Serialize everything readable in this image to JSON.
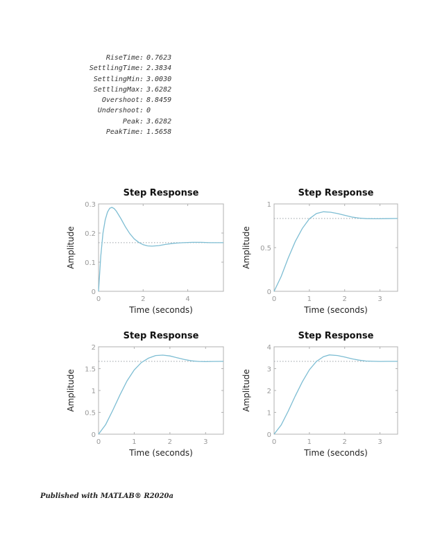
{
  "stats": [
    {
      "key": "RiseTime",
      "value": "0.7623"
    },
    {
      "key": "SettlingTime",
      "value": "2.3834"
    },
    {
      "key": "SettlingMin",
      "value": "3.0030"
    },
    {
      "key": "SettlingMax",
      "value": "3.6282"
    },
    {
      "key": "Overshoot",
      "value": "8.8459"
    },
    {
      "key": "Undershoot",
      "value": "0"
    },
    {
      "key": "Peak",
      "value": "3.6282"
    },
    {
      "key": "PeakTime",
      "value": "1.5658"
    }
  ],
  "footer": "Published with MATLAB® R2020a",
  "colors": {
    "curve": "#7dbdd3",
    "reference": "#9aa0a6",
    "axis": "#b0b0b0",
    "tick_text": "#999999"
  },
  "chart_data": [
    {
      "type": "line",
      "title": "Step Response",
      "xlabel": "Time (seconds)",
      "ylabel": "Amplitude",
      "xlim": [
        0,
        5.6
      ],
      "ylim": [
        0,
        0.3
      ],
      "xticks": [
        0,
        2,
        4
      ],
      "xtick_labels": [
        "0",
        "2",
        "4"
      ],
      "yticks": [
        0,
        0.1,
        0.2,
        0.3
      ],
      "ytick_labels": [
        "0",
        "0.1",
        "0.2",
        "0.3"
      ],
      "steady_state": 0.167,
      "grid": false,
      "series": [
        {
          "x": [
            0,
            0.1,
            0.2,
            0.3,
            0.4,
            0.5,
            0.6,
            0.7,
            0.8,
            1.0,
            1.2,
            1.4,
            1.6,
            1.8,
            2.0,
            2.2,
            2.4,
            2.7,
            3.0,
            3.4,
            3.8,
            4.2,
            4.6,
            5.0,
            5.6
          ],
          "y": [
            0,
            0.12,
            0.2,
            0.245,
            0.272,
            0.285,
            0.288,
            0.284,
            0.275,
            0.25,
            0.222,
            0.198,
            0.18,
            0.168,
            0.16,
            0.156,
            0.155,
            0.157,
            0.161,
            0.165,
            0.167,
            0.168,
            0.168,
            0.167,
            0.167
          ]
        }
      ]
    },
    {
      "type": "line",
      "title": "Step Response",
      "xlabel": "Time (seconds)",
      "ylabel": "Amplitude",
      "xlim": [
        0,
        3.5
      ],
      "ylim": [
        0,
        1
      ],
      "xticks": [
        0,
        1,
        2,
        3
      ],
      "xtick_labels": [
        "0",
        "1",
        "2",
        "3"
      ],
      "yticks": [
        0,
        0.5,
        1
      ],
      "ytick_labels": [
        "0",
        "0.5",
        "1"
      ],
      "steady_state": 0.833,
      "grid": false,
      "series": [
        {
          "x": [
            0,
            0.2,
            0.4,
            0.6,
            0.8,
            1.0,
            1.2,
            1.4,
            1.6,
            1.8,
            2.0,
            2.2,
            2.4,
            2.6,
            2.8,
            3.0,
            3.2,
            3.5
          ],
          "y": [
            0,
            0.17,
            0.38,
            0.57,
            0.72,
            0.83,
            0.89,
            0.91,
            0.905,
            0.89,
            0.87,
            0.85,
            0.838,
            0.832,
            0.83,
            0.83,
            0.832,
            0.833
          ]
        }
      ]
    },
    {
      "type": "line",
      "title": "Step Response",
      "xlabel": "Time (seconds)",
      "ylabel": "Amplitude",
      "xlim": [
        0,
        3.5
      ],
      "ylim": [
        0,
        2
      ],
      "xticks": [
        0,
        1,
        2,
        3
      ],
      "xtick_labels": [
        "0",
        "1",
        "2",
        "3"
      ],
      "yticks": [
        0,
        0.5,
        1,
        1.5,
        2
      ],
      "ytick_labels": [
        "0",
        "0.5",
        "1",
        "1.5",
        "2"
      ],
      "steady_state": 1.667,
      "grid": false,
      "series": [
        {
          "x": [
            0,
            0.2,
            0.4,
            0.6,
            0.8,
            1.0,
            1.2,
            1.4,
            1.6,
            1.8,
            2.0,
            2.2,
            2.4,
            2.6,
            2.8,
            3.0,
            3.2,
            3.5
          ],
          "y": [
            0,
            0.22,
            0.55,
            0.9,
            1.22,
            1.47,
            1.64,
            1.74,
            1.8,
            1.81,
            1.79,
            1.75,
            1.71,
            1.68,
            1.665,
            1.66,
            1.665,
            1.667
          ]
        }
      ]
    },
    {
      "type": "line",
      "title": "Step Response",
      "xlabel": "Time (seconds)",
      "ylabel": "Amplitude",
      "xlim": [
        0,
        3.5
      ],
      "ylim": [
        0,
        4
      ],
      "xticks": [
        0,
        1,
        2,
        3
      ],
      "xtick_labels": [
        "0",
        "1",
        "2",
        "3"
      ],
      "yticks": [
        0,
        1,
        2,
        3,
        4
      ],
      "ytick_labels": [
        "0",
        "1",
        "2",
        "3",
        "4"
      ],
      "steady_state": 3.333,
      "grid": false,
      "series": [
        {
          "x": [
            0,
            0.2,
            0.4,
            0.6,
            0.8,
            1.0,
            1.2,
            1.4,
            1.5658,
            1.8,
            2.0,
            2.2,
            2.4,
            2.6,
            2.8,
            3.0,
            3.2,
            3.5
          ],
          "y": [
            0,
            0.42,
            1.05,
            1.75,
            2.4,
            2.95,
            3.33,
            3.55,
            3.6282,
            3.6,
            3.53,
            3.45,
            3.39,
            3.35,
            3.335,
            3.33,
            3.332,
            3.333
          ]
        }
      ]
    }
  ]
}
